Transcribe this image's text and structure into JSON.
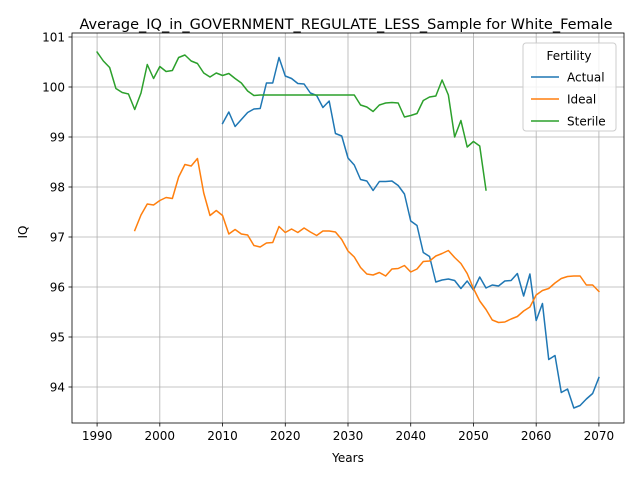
{
  "chart_data": {
    "type": "line",
    "title": "Average_IQ_in_GOVERNMENT_REGULATE_LESS_Sample for White_Female",
    "xlabel": "Years",
    "ylabel": "IQ",
    "xlim": [
      1986,
      2074
    ],
    "ylim": [
      93.28,
      101.08
    ],
    "xticks": [
      1990,
      2000,
      2010,
      2020,
      2030,
      2040,
      2050,
      2060,
      2070
    ],
    "yticks": [
      94,
      95,
      96,
      97,
      98,
      99,
      100,
      101
    ],
    "grid": true,
    "legend": {
      "title": "Fertility",
      "position": "top-right"
    },
    "series": [
      {
        "name": "Actual",
        "color": "#1f77b4",
        "x": [
          2010,
          2011,
          2012,
          2013,
          2014,
          2015,
          2016,
          2017,
          2018,
          2019,
          2020,
          2021,
          2022,
          2023,
          2024,
          2025,
          2026,
          2027,
          2028,
          2029,
          2030,
          2031,
          2032,
          2033,
          2034,
          2035,
          2036,
          2037,
          2038,
          2039,
          2040,
          2041,
          2042,
          2043,
          2044,
          2045,
          2046,
          2047,
          2048,
          2049,
          2050,
          2051,
          2052,
          2053,
          2054,
          2055,
          2056,
          2057,
          2058,
          2059,
          2060,
          2061,
          2062,
          2063,
          2064,
          2065,
          2066,
          2067,
          2068,
          2069,
          2070
        ],
        "y": [
          99.27,
          99.5,
          99.21,
          99.35,
          99.49,
          99.56,
          99.57,
          100.08,
          100.08,
          100.59,
          100.22,
          100.17,
          100.07,
          100.06,
          99.88,
          99.83,
          99.59,
          99.72,
          99.07,
          99.02,
          98.58,
          98.44,
          98.15,
          98.12,
          97.93,
          98.11,
          98.11,
          98.12,
          98.03,
          97.86,
          97.32,
          97.23,
          96.69,
          96.61,
          96.1,
          96.14,
          96.16,
          96.13,
          95.97,
          96.12,
          95.94,
          96.2,
          95.98,
          96.04,
          96.02,
          96.12,
          96.13,
          96.27,
          95.82,
          96.26,
          95.33,
          95.67,
          94.55,
          94.63,
          93.89,
          93.96,
          93.58,
          93.63,
          93.76,
          93.87,
          94.19
        ]
      },
      {
        "name": "Ideal",
        "color": "#ff7f0e",
        "x": [
          1996,
          1997,
          1998,
          1999,
          2000,
          2001,
          2002,
          2003,
          2004,
          2005,
          2006,
          2007,
          2008,
          2009,
          2010,
          2011,
          2012,
          2013,
          2014,
          2015,
          2016,
          2017,
          2018,
          2019,
          2020,
          2021,
          2022,
          2023,
          2024,
          2025,
          2026,
          2027,
          2028,
          2029,
          2030,
          2031,
          2032,
          2033,
          2034,
          2035,
          2036,
          2037,
          2038,
          2039,
          2040,
          2041,
          2042,
          2043,
          2044,
          2045,
          2046,
          2047,
          2048,
          2049,
          2050,
          2051,
          2052,
          2053,
          2054,
          2055,
          2056,
          2057,
          2058,
          2059,
          2060,
          2061,
          2062,
          2063,
          2064,
          2065,
          2066,
          2067,
          2068,
          2069,
          2070
        ],
        "y": [
          97.13,
          97.44,
          97.66,
          97.64,
          97.73,
          97.79,
          97.77,
          98.2,
          98.45,
          98.42,
          98.57,
          97.88,
          97.43,
          97.53,
          97.43,
          97.06,
          97.15,
          97.06,
          97.04,
          96.83,
          96.8,
          96.88,
          96.89,
          97.21,
          97.09,
          97.16,
          97.09,
          97.18,
          97.1,
          97.03,
          97.12,
          97.12,
          97.1,
          96.95,
          96.72,
          96.6,
          96.39,
          96.26,
          96.24,
          96.29,
          96.22,
          96.36,
          96.37,
          96.43,
          96.3,
          96.36,
          96.51,
          96.52,
          96.62,
          96.67,
          96.73,
          96.59,
          96.47,
          96.27,
          95.97,
          95.72,
          95.55,
          95.34,
          95.29,
          95.3,
          95.36,
          95.41,
          95.52,
          95.6,
          95.84,
          95.93,
          95.97,
          96.08,
          96.17,
          96.21,
          96.22,
          96.22,
          96.04,
          96.04,
          95.91
        ]
      },
      {
        "name": "Sterile",
        "color": "#2ca02c",
        "x": [
          1990,
          1991,
          1992,
          1993,
          1994,
          1995,
          1996,
          1997,
          1998,
          1999,
          2000,
          2001,
          2002,
          2003,
          2004,
          2005,
          2006,
          2007,
          2008,
          2009,
          2010,
          2011,
          2012,
          2013,
          2014,
          2015,
          2016,
          2017,
          2018,
          2019,
          2020,
          2021,
          2022,
          2023,
          2024,
          2025,
          2026,
          2027,
          2028,
          2029,
          2030,
          2031,
          2032,
          2033,
          2034,
          2035,
          2036,
          2037,
          2038,
          2039,
          2040,
          2041,
          2042,
          2043,
          2044,
          2045,
          2046,
          2047,
          2048,
          2049,
          2050,
          2051,
          2052
        ],
        "y": [
          100.7,
          100.52,
          100.39,
          99.97,
          99.89,
          99.86,
          99.55,
          99.88,
          100.45,
          100.17,
          100.41,
          100.31,
          100.33,
          100.59,
          100.64,
          100.52,
          100.47,
          100.28,
          100.2,
          100.28,
          100.23,
          100.27,
          100.17,
          100.08,
          99.92,
          99.83,
          99.84,
          99.84,
          99.84,
          99.84,
          99.84,
          99.84,
          99.84,
          99.84,
          99.84,
          99.84,
          99.84,
          99.84,
          99.84,
          99.84,
          99.84,
          99.84,
          99.64,
          99.6,
          99.51,
          99.64,
          99.68,
          99.69,
          99.68,
          99.4,
          99.43,
          99.47,
          99.73,
          99.8,
          99.82,
          100.14,
          99.84,
          99.0,
          99.33,
          98.8,
          98.91,
          98.82,
          97.94
        ]
      }
    ]
  }
}
